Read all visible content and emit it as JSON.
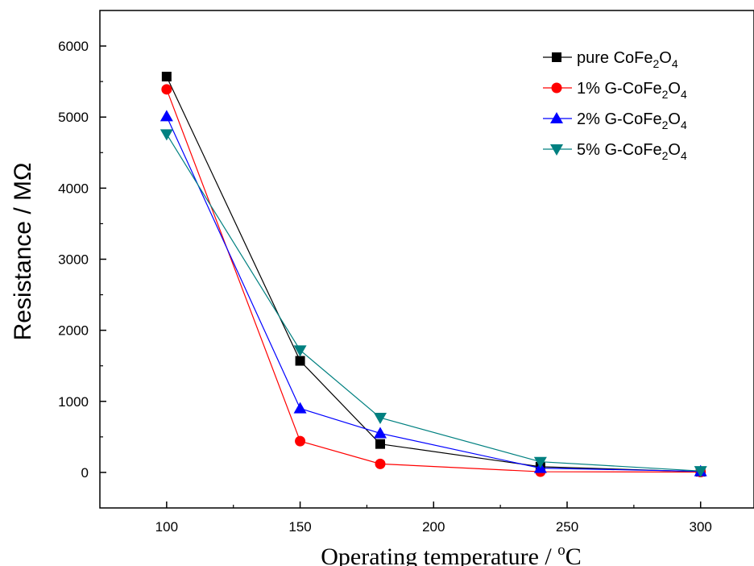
{
  "chart_data": {
    "type": "line",
    "xlabel": "Operating temperature  / ",
    "xlabel_unit_sup": "o",
    "xlabel_unit": "C",
    "ylabel": "Resistance / MΩ",
    "xlim": [
      75,
      320
    ],
    "ylim": [
      -500,
      6500
    ],
    "x_ticks": [
      100,
      150,
      200,
      250,
      300
    ],
    "y_ticks": [
      0,
      1000,
      2000,
      3000,
      4000,
      5000,
      6000
    ],
    "grid": false,
    "legend_position": "top-right",
    "x": [
      100,
      150,
      180,
      240,
      300
    ],
    "series": [
      {
        "legend": {
          "prefix": "pure CoFe",
          "sub1": "2",
          "mid": "O",
          "sub2": "4"
        },
        "color": "#000000",
        "marker": "square",
        "values": [
          5570,
          1570,
          400,
          80,
          10
        ]
      },
      {
        "legend": {
          "prefix": "1% G-CoFe",
          "sub1": "2",
          "mid": "O",
          "sub2": "4"
        },
        "color": "#ff0000",
        "marker": "circle",
        "values": [
          5390,
          440,
          120,
          10,
          5
        ]
      },
      {
        "legend": {
          "prefix": "2% G-CoFe",
          "sub1": "2",
          "mid": "O",
          "sub2": "4"
        },
        "color": "#0000ff",
        "marker": "triangle-up",
        "values": [
          5010,
          900,
          550,
          60,
          15
        ]
      },
      {
        "legend": {
          "prefix": "5% G-CoFe",
          "sub1": "2",
          "mid": "O",
          "sub2": "4"
        },
        "color": "#008080",
        "marker": "triangle-down",
        "values": [
          4760,
          1720,
          770,
          150,
          20
        ]
      }
    ]
  }
}
